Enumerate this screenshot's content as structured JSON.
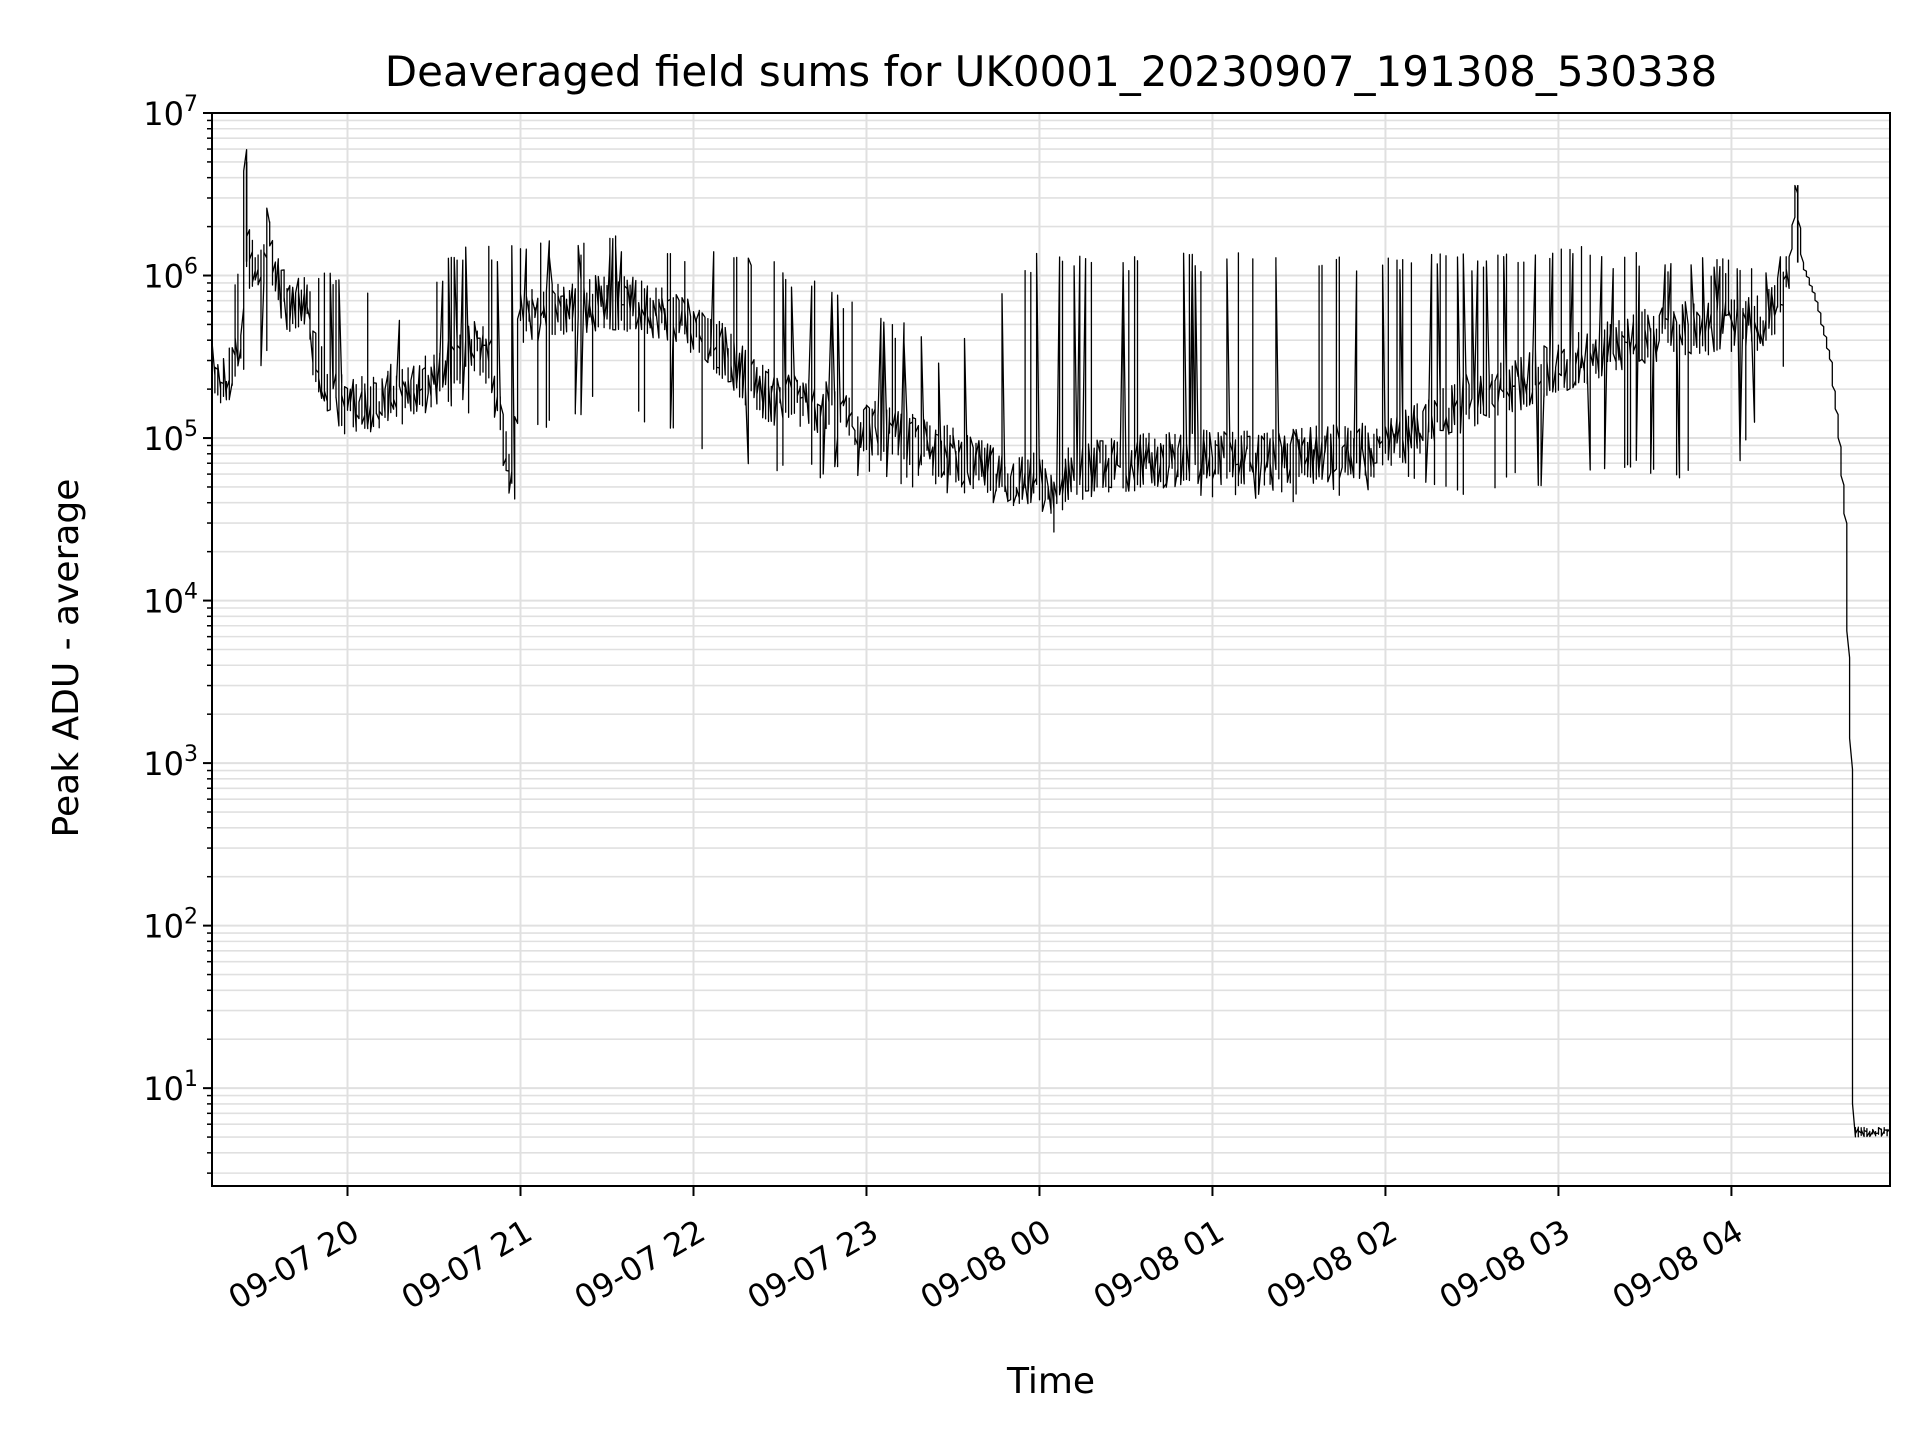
{
  "chart_data": {
    "type": "line",
    "title": "Deaveraged field sums for UK0001_20230907_191308_530338",
    "xlabel": "Time",
    "ylabel": "Peak ADU - average",
    "yscale": "log",
    "ylim": [
      2.5,
      10000000
    ],
    "xlim": [
      "2023-09-07 19:13",
      "2023-09-08 04:55"
    ],
    "grid": true,
    "line_color": "#000000",
    "grid_color": "#e0e0e0",
    "x_ticks": [
      {
        "value": "2023-09-07 20:00",
        "label": "09-07 20"
      },
      {
        "value": "2023-09-07 21:00",
        "label": "09-07 21"
      },
      {
        "value": "2023-09-07 22:00",
        "label": "09-07 22"
      },
      {
        "value": "2023-09-07 23:00",
        "label": "09-07 23"
      },
      {
        "value": "2023-09-08 00:00",
        "label": "09-08 00"
      },
      {
        "value": "2023-09-08 01:00",
        "label": "09-08 01"
      },
      {
        "value": "2023-09-08 02:00",
        "label": "09-08 02"
      },
      {
        "value": "2023-09-08 03:00",
        "label": "09-08 03"
      },
      {
        "value": "2023-09-08 04:00",
        "label": "09-08 04"
      }
    ],
    "y_ticks": [
      {
        "value": 10,
        "base": "10",
        "exp": "1"
      },
      {
        "value": 100,
        "base": "10",
        "exp": "2"
      },
      {
        "value": 1000,
        "base": "10",
        "exp": "3"
      },
      {
        "value": 10000,
        "base": "10",
        "exp": "4"
      },
      {
        "value": 100000,
        "base": "10",
        "exp": "5"
      },
      {
        "value": 1000000,
        "base": "10",
        "exp": "6"
      },
      {
        "value": 10000000,
        "base": "10",
        "exp": "7"
      }
    ],
    "series": [
      {
        "points": [
          [
            "2023-09-07 19:13",
            420000
          ],
          [
            "2023-09-07 19:15",
            200000
          ],
          [
            "2023-09-07 19:20",
            260000
          ],
          [
            "2023-09-07 19:24",
            320000
          ],
          [
            "2023-09-07 19:25",
            5000000
          ],
          [
            "2023-09-07 19:26",
            1300000
          ],
          [
            "2023-09-07 19:30",
            1000000
          ],
          [
            "2023-09-07 19:33",
            1800000
          ],
          [
            "2023-09-07 19:36",
            900000
          ],
          [
            "2023-09-07 19:40",
            600000
          ],
          [
            "2023-09-07 19:45",
            750000
          ],
          [
            "2023-09-07 19:48",
            450000
          ],
          [
            "2023-09-07 19:50",
            260000
          ],
          [
            "2023-09-07 19:55",
            220000
          ],
          [
            "2023-09-07 20:00",
            150000
          ],
          [
            "2023-09-07 20:05",
            170000
          ],
          [
            "2023-09-07 20:10",
            160000
          ],
          [
            "2023-09-07 20:15",
            190000
          ],
          [
            "2023-09-07 20:20",
            180000
          ],
          [
            "2023-09-07 20:25",
            210000
          ],
          [
            "2023-09-07 20:30",
            230000
          ],
          [
            "2023-09-07 20:35",
            280000
          ],
          [
            "2023-09-07 20:40",
            320000
          ],
          [
            "2023-09-07 20:45",
            380000
          ],
          [
            "2023-09-07 20:50",
            300000
          ],
          [
            "2023-09-07 20:58",
            45000
          ],
          [
            "2023-09-07 21:00",
            550000
          ],
          [
            "2023-09-07 21:10",
            600000
          ],
          [
            "2023-09-07 21:20",
            650000
          ],
          [
            "2023-09-07 21:30",
            700000
          ],
          [
            "2023-09-07 21:40",
            650000
          ],
          [
            "2023-09-07 21:50",
            600000
          ],
          [
            "2023-09-07 22:00",
            500000
          ],
          [
            "2023-09-07 22:10",
            350000
          ],
          [
            "2023-09-07 22:20",
            220000
          ],
          [
            "2023-09-07 22:30",
            170000
          ],
          [
            "2023-09-07 22:40",
            170000
          ],
          [
            "2023-09-07 22:50",
            140000
          ],
          [
            "2023-09-07 23:00",
            120000
          ],
          [
            "2023-09-07 23:10",
            100000
          ],
          [
            "2023-09-07 23:20",
            90000
          ],
          [
            "2023-09-07 23:30",
            80000
          ],
          [
            "2023-09-07 23:40",
            65000
          ],
          [
            "2023-09-07 23:50",
            55000
          ],
          [
            "2023-09-08 00:00",
            55000
          ],
          [
            "2023-09-08 00:06",
            38000
          ],
          [
            "2023-09-08 00:10",
            60000
          ],
          [
            "2023-09-08 00:20",
            65000
          ],
          [
            "2023-09-08 00:30",
            70000
          ],
          [
            "2023-09-08 00:40",
            72000
          ],
          [
            "2023-09-08 00:50",
            75000
          ],
          [
            "2023-09-08 01:00",
            75000
          ],
          [
            "2023-09-08 01:10",
            76000
          ],
          [
            "2023-09-08 01:20",
            75000
          ],
          [
            "2023-09-08 01:30",
            78000
          ],
          [
            "2023-09-08 01:40",
            80000
          ],
          [
            "2023-09-08 01:50",
            82000
          ],
          [
            "2023-09-08 02:00",
            85000
          ],
          [
            "2023-09-08 02:10",
            110000
          ],
          [
            "2023-09-08 02:20",
            140000
          ],
          [
            "2023-09-08 02:30",
            170000
          ],
          [
            "2023-09-08 02:40",
            200000
          ],
          [
            "2023-09-08 02:50",
            230000
          ],
          [
            "2023-09-08 03:00",
            260000
          ],
          [
            "2023-09-08 03:10",
            320000
          ],
          [
            "2023-09-08 03:20",
            380000
          ],
          [
            "2023-09-08 03:30",
            420000
          ],
          [
            "2023-09-08 03:40",
            450000
          ],
          [
            "2023-09-08 03:50",
            480000
          ],
          [
            "2023-09-08 04:00",
            500000
          ],
          [
            "2023-09-08 04:05",
            500000
          ],
          [
            "2023-09-08 04:10",
            520000
          ],
          [
            "2023-09-08 04:15",
            600000
          ],
          [
            "2023-09-08 04:20",
            800000
          ],
          [
            "2023-09-08 04:23",
            3600000
          ],
          [
            "2023-09-08 04:25",
            1200000
          ],
          [
            "2023-09-08 04:30",
            700000
          ],
          [
            "2023-09-08 04:35",
            300000
          ],
          [
            "2023-09-08 04:38",
            100000
          ],
          [
            "2023-09-08 04:40",
            30000
          ],
          [
            "2023-09-08 04:42",
            1000
          ],
          [
            "2023-09-08 04:43",
            5
          ],
          [
            "2023-09-08 04:55",
            5
          ]
        ],
        "envelope": [
          [
            "2023-09-07 19:13",
            160000,
            450000
          ],
          [
            "2023-09-07 19:25",
            250000,
            1400000
          ],
          [
            "2023-09-07 19:40",
            300000,
            900000
          ],
          [
            "2023-09-07 20:00",
            100000,
            1200000
          ],
          [
            "2023-09-07 20:20",
            130000,
            600000
          ],
          [
            "2023-09-07 20:40",
            150000,
            1600000
          ],
          [
            "2023-09-07 21:00",
            100000,
            1600000
          ],
          [
            "2023-09-07 21:30",
            150000,
            1800000
          ],
          [
            "2023-09-07 22:00",
            90000,
            1600000
          ],
          [
            "2023-09-07 22:30",
            60000,
            1200000
          ],
          [
            "2023-09-07 23:00",
            50000,
            700000
          ],
          [
            "2023-09-07 23:30",
            45000,
            350000
          ],
          [
            "2023-09-08 00:00",
            40000,
            1400000
          ],
          [
            "2023-09-08 00:30",
            45000,
            1400000
          ],
          [
            "2023-09-08 01:00",
            42000,
            1400000
          ],
          [
            "2023-09-08 01:30",
            40000,
            1400000
          ],
          [
            "2023-09-08 02:00",
            45000,
            1400000
          ],
          [
            "2023-09-08 02:30",
            45000,
            1400000
          ],
          [
            "2023-09-08 03:00",
            50000,
            1600000
          ],
          [
            "2023-09-08 03:30",
            60000,
            1400000
          ],
          [
            "2023-09-08 04:00",
            50000,
            1300000
          ],
          [
            "2023-09-08 04:20",
            250000,
            1400000
          ]
        ]
      }
    ]
  }
}
